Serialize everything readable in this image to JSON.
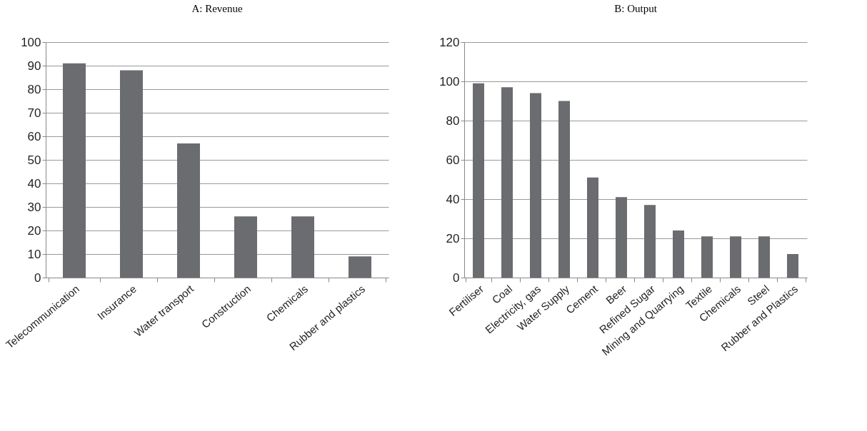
{
  "chart_data": [
    {
      "type": "bar",
      "title": "A: Revenue",
      "categories": [
        "Telecommunication",
        "Insurance",
        "Water transport",
        "Construction",
        "Chemicals",
        "Rubber and plastics"
      ],
      "values": [
        91,
        88,
        57,
        26,
        26,
        9
      ],
      "color": "#6b6c70",
      "ylim": [
        0,
        100
      ],
      "yticks": [
        0,
        10,
        20,
        30,
        40,
        50,
        60,
        70,
        80,
        90,
        100
      ],
      "grid": "y"
    },
    {
      "type": "bar",
      "title": "B: Output",
      "categories": [
        "Fertiliser",
        "Coal",
        "Electricity, gas",
        "Water Supply",
        "Cement",
        "Beer",
        "Refined Sugar",
        "Mining and Quarrying",
        "Textile",
        "Chemicals",
        "Steel",
        "Rubber and Plastics"
      ],
      "values": [
        99,
        97,
        94,
        90,
        51,
        41,
        37,
        24,
        21,
        21,
        21,
        12
      ],
      "color": "#6b6c70",
      "ylim": [
        0,
        120
      ],
      "yticks": [
        0,
        20,
        40,
        60,
        80,
        100,
        120
      ],
      "grid": "y"
    }
  ]
}
